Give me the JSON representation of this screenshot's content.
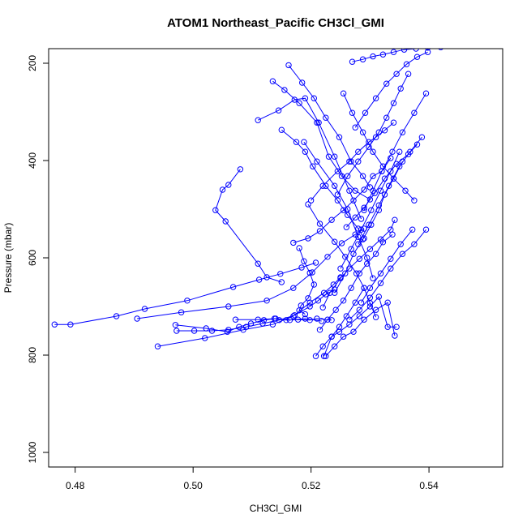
{
  "chart_data": {
    "type": "line",
    "title": "ATOM1 Northeast_Pacific CH3Cl_GMI",
    "xlabel": "CH3Cl_GMI",
    "ylabel": "Pressure (mbar)",
    "xlim": [
      0.4755,
      0.5525
    ],
    "ylim": [
      1030,
      170
    ],
    "y_reversed": true,
    "xticks": [
      0.48,
      0.5,
      0.52,
      0.54
    ],
    "xtick_labels": [
      "0.48",
      "0.50",
      "0.52",
      "0.54"
    ],
    "yticks": [
      200,
      400,
      600,
      800,
      1000
    ],
    "ytick_labels": [
      "200",
      "400",
      "600",
      "800",
      "1000"
    ],
    "grid": false,
    "legend": "none",
    "color": "#0000ff",
    "marker": "open-circle",
    "series": [
      {
        "x": [
          0.4765,
          0.4792,
          0.487,
          0.4918,
          0.499,
          0.5068,
          0.5112,
          0.5148,
          0.5184,
          0.5208
        ],
        "y": [
          737,
          737,
          720,
          705,
          688,
          660,
          645,
          633,
          620,
          610
        ]
      },
      {
        "x": [
          0.4905,
          0.498,
          0.506,
          0.5125,
          0.517,
          0.5202,
          0.5228,
          0.5252,
          0.5275,
          0.529
        ],
        "y": [
          725,
          712,
          700,
          688,
          662,
          630,
          598,
          570,
          552,
          540
        ]
      },
      {
        "x": [
          0.494,
          0.502,
          0.5085,
          0.5135,
          0.517,
          0.5198,
          0.5222,
          0.5238,
          0.525
        ],
        "y": [
          782,
          765,
          748,
          737,
          720,
          692,
          672,
          655,
          640
        ]
      },
      {
        "x": [
          0.4972,
          0.5002,
          0.5032,
          0.506,
          0.509,
          0.5118,
          0.5146,
          0.5172,
          0.5198,
          0.5212,
          0.5225,
          0.524
        ],
        "y": [
          750,
          750,
          750,
          748,
          742,
          735,
          728,
          718,
          700,
          688,
          675,
          665
        ]
      },
      {
        "x": [
          0.497,
          0.5022,
          0.5058,
          0.5078,
          0.5098,
          0.512,
          0.514,
          0.5164,
          0.519,
          0.5218
        ],
        "y": [
          738,
          745,
          752,
          742,
          735,
          728,
          725,
          728,
          725,
          730
        ]
      },
      {
        "x": [
          0.5072,
          0.511,
          0.5138,
          0.5158,
          0.5178,
          0.5198,
          0.521,
          0.5235
        ],
        "y": [
          727,
          727,
          725,
          728,
          727,
          728,
          725,
          728
        ]
      },
      {
        "x": [
          0.508,
          0.506,
          0.505,
          0.5038,
          0.5055,
          0.511,
          0.5125,
          0.515
        ],
        "y": [
          418,
          450,
          460,
          502,
          525,
          612,
          640,
          650
        ]
      },
      {
        "x": [
          0.511,
          0.5145,
          0.5172,
          0.519,
          0.5213,
          0.524,
          0.5265,
          0.5285
        ],
        "y": [
          317,
          297,
          275,
          272,
          322,
          392,
          462,
          520
        ]
      },
      {
        "x": [
          0.5135,
          0.5155,
          0.518,
          0.521,
          0.523,
          0.5252,
          0.5275,
          0.53
        ],
        "y": [
          237,
          255,
          282,
          322,
          392,
          432,
          462,
          480
        ]
      },
      {
        "x": [
          0.515,
          0.5175,
          0.519,
          0.5203,
          0.5225,
          0.5245,
          0.5262,
          0.528,
          0.529
        ],
        "y": [
          337,
          362,
          382,
          412,
          452,
          482,
          512,
          540,
          560
        ]
      },
      {
        "x": [
          0.5162,
          0.5185,
          0.5205,
          0.5225,
          0.5248,
          0.5268,
          0.5288,
          0.53
        ],
        "y": [
          204,
          240,
          272,
          312,
          352,
          402,
          432,
          455
        ]
      },
      {
        "x": [
          0.517,
          0.5195,
          0.5215,
          0.5235,
          0.5255,
          0.5272,
          0.529,
          0.5305,
          0.532,
          0.5335
        ],
        "y": [
          569,
          560,
          545,
          522,
          502,
          482,
          460,
          432,
          422,
          395
        ]
      },
      {
        "x": [
          0.518,
          0.5188,
          0.5198,
          0.5205,
          0.5195,
          0.5183,
          0.518,
          0.519
        ],
        "y": [
          580,
          607,
          631,
          655,
          683,
          698,
          708,
          716
        ]
      },
      {
        "x": [
          0.5188,
          0.521,
          0.524,
          0.5262,
          0.528,
          0.5295,
          0.5305
        ],
        "y": [
          362,
          402,
          452,
          500,
          557,
          600,
          642
        ]
      },
      {
        "x": [
          0.5195,
          0.5215,
          0.524,
          0.5258,
          0.5277,
          0.529,
          0.53,
          0.531
        ],
        "y": [
          490,
          530,
          567,
          598,
          632,
          662,
          693,
          722
        ]
      },
      {
        "x": [
          0.52,
          0.522,
          0.5245,
          0.5265,
          0.528,
          0.5298,
          0.531,
          0.5325,
          0.534
        ],
        "y": [
          482,
          452,
          422,
          402,
          382,
          362,
          352,
          338,
          322
        ]
      },
      {
        "x": [
          0.5208,
          0.522,
          0.5235,
          0.5248,
          0.526,
          0.5275,
          0.529
        ],
        "y": [
          802,
          782,
          762,
          742,
          720,
          692,
          662
        ]
      },
      {
        "x": [
          0.5215,
          0.5228,
          0.5242,
          0.5255,
          0.5268,
          0.5282,
          0.5295,
          0.531,
          0.5322,
          0.5338
        ],
        "y": [
          748,
          727,
          707,
          688,
          662,
          632,
          612,
          592,
          568,
          552
        ]
      },
      {
        "x": [
          0.522,
          0.5232,
          0.525,
          0.5265,
          0.5282,
          0.53,
          0.5318,
          0.5335,
          0.5342
        ],
        "y": [
          702,
          672,
          642,
          622,
          602,
          582,
          562,
          542,
          522
        ]
      },
      {
        "x": [
          0.5222,
          0.5235,
          0.5248,
          0.5265,
          0.5282,
          0.53,
          0.5315,
          0.533,
          0.5345
        ],
        "y": [
          802,
          762,
          752,
          737,
          720,
          700,
          680,
          742,
          742
        ]
      },
      {
        "x": [
          0.5225,
          0.524,
          0.5255,
          0.5272,
          0.529,
          0.531,
          0.533,
          0.5342
        ],
        "y": [
          802,
          782,
          762,
          752,
          727,
          707,
          692,
          760
        ]
      },
      {
        "x": [
          0.524,
          0.5258,
          0.5272,
          0.5288,
          0.5302,
          0.5315,
          0.5325,
          0.534,
          0.5355
        ],
        "y": [
          672,
          632,
          592,
          562,
          532,
          502,
          470,
          437,
          402
        ]
      },
      {
        "x": [
          0.5245,
          0.5262,
          0.528,
          0.5298,
          0.5315,
          0.5328,
          0.534,
          0.5352,
          0.5365
        ],
        "y": [
          470,
          432,
          402,
          372,
          342,
          312,
          282,
          252,
          222
        ]
      },
      {
        "x": [
          0.525,
          0.5268,
          0.5285,
          0.5302,
          0.5318,
          0.5335,
          0.535
        ],
        "y": [
          622,
          582,
          542,
          502,
          462,
          422,
          382
        ]
      },
      {
        "x": [
          0.5255,
          0.527,
          0.5288,
          0.5305,
          0.5322,
          0.534,
          0.536,
          0.5375
        ],
        "y": [
          262,
          302,
          342,
          382,
          412,
          437,
          462,
          482
        ]
      },
      {
        "x": [
          0.526,
          0.5275,
          0.529,
          0.5308,
          0.5325,
          0.5345,
          0.5365,
          0.538
        ],
        "y": [
          537,
          517,
          497,
          467,
          437,
          407,
          387,
          367
        ]
      },
      {
        "x": [
          0.5265,
          0.5282,
          0.53,
          0.5318,
          0.5335,
          0.5355,
          0.5375,
          0.5395
        ],
        "y": [
          727,
          707,
          682,
          652,
          622,
          592,
          572,
          542
        ]
      },
      {
        "x": [
          0.527,
          0.5288,
          0.5305,
          0.5322,
          0.534,
          0.5358,
          0.5378,
          0.5398,
          0.542
        ],
        "y": [
          197,
          192,
          186,
          182,
          177,
          172,
          170,
          168,
          167
        ]
      },
      {
        "x": [
          0.5275,
          0.5292,
          0.531,
          0.5328,
          0.5345,
          0.5362,
          0.538,
          0.5398
        ],
        "y": [
          332,
          302,
          272,
          242,
          222,
          202,
          187,
          177
        ]
      },
      {
        "x": [
          0.528,
          0.5298,
          0.5315,
          0.5332,
          0.535,
          0.5368,
          0.5388
        ],
        "y": [
          572,
          532,
          492,
          452,
          412,
          382,
          352
        ]
      },
      {
        "x": [
          0.5285,
          0.53,
          0.5318,
          0.5335,
          0.5352,
          0.5372
        ],
        "y": [
          692,
          662,
          632,
          602,
          572,
          542
        ]
      },
      {
        "x": [
          0.529,
          0.5305,
          0.532,
          0.5338,
          0.5355,
          0.5375,
          0.5395
        ],
        "y": [
          502,
          462,
          422,
          382,
          342,
          302,
          262
        ]
      }
    ]
  }
}
